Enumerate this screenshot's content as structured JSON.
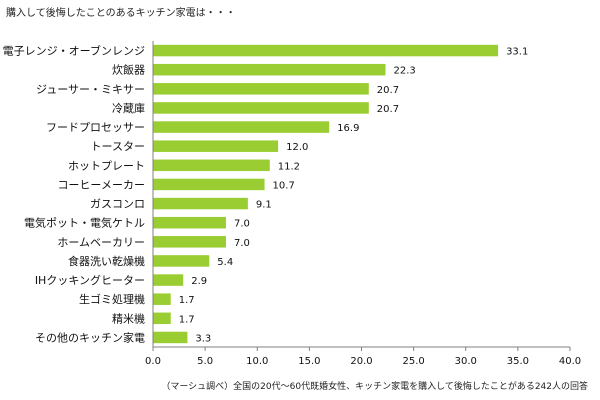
{
  "title": "購入して後悔したことのあるキッチン家電は・・・",
  "footnote": "（マーシュ調べ）全国の20代～60代既婚女性、キッチン家電を購入して後悔したことがある242人の回答",
  "colors": {
    "bar": "#9acd32",
    "axis": "#808080"
  },
  "chart_data": {
    "type": "bar",
    "orientation": "horizontal",
    "title": "購入して後悔したことのあるキッチン家電は・・・",
    "categories": [
      "電子レンジ・オーブンレンジ",
      "炊飯器",
      "ジューサー・ミキサー",
      "冷蔵庫",
      "フードプロセッサー",
      "トースター",
      "ホットプレート",
      "コーヒーメーカー",
      "ガスコンロ",
      "電気ポット・電気ケトル",
      "ホームベーカリー",
      "食器洗い乾燥機",
      "IHクッキングヒーター",
      "生ゴミ処理機",
      "精米機",
      "その他のキッチン家電"
    ],
    "values": [
      33.1,
      22.3,
      20.7,
      20.7,
      16.9,
      12.0,
      11.2,
      10.7,
      9.1,
      7.0,
      7.0,
      5.4,
      2.9,
      1.7,
      1.7,
      3.3
    ],
    "value_labels": [
      "33.1",
      "22.3",
      "20.7",
      "20.7",
      "16.9",
      "12.0",
      "11.2",
      "10.7",
      "9.1",
      "7.0",
      "7.0",
      "5.4",
      "2.9",
      "1.7",
      "1.7",
      "3.3"
    ],
    "xlim": [
      0,
      40
    ],
    "x_ticks": [
      "0.0",
      "5.0",
      "10.0",
      "15.0",
      "20.0",
      "25.0",
      "30.0",
      "35.0",
      "40.0"
    ],
    "grid": false,
    "xlabel": "",
    "ylabel": ""
  }
}
